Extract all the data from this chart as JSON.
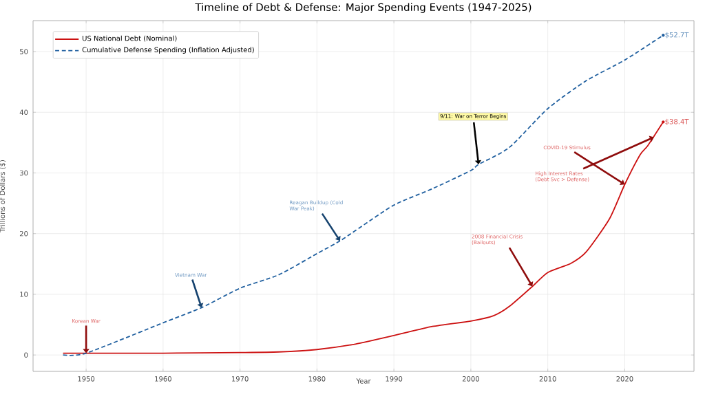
{
  "chart_data": {
    "type": "line",
    "title": "Timeline of Debt & Defense: Major Spending Events (1947-2025)",
    "xlabel": "Year",
    "ylabel": "Trillions of Dollars ($)",
    "xlim": [
      1943.1,
      2029
    ],
    "ylim": [
      -2.7,
      55.1
    ],
    "xticks": [
      1950,
      1960,
      1970,
      1980,
      1990,
      2000,
      2010,
      2020
    ],
    "yticks": [
      0,
      10,
      20,
      30,
      40,
      50
    ],
    "grid": true,
    "legend": "top left",
    "series": [
      {
        "name": "US National Debt (Nominal)",
        "color": "#cc1111",
        "line_style": "solid",
        "x": [
          1947,
          1950,
          1960,
          1970,
          1975,
          1980,
          1985,
          1990,
          1995,
          2000,
          2003,
          2005,
          2008,
          2010,
          2013,
          2015,
          2018,
          2020,
          2022,
          2023,
          2025
        ],
        "values": [
          0.3,
          0.3,
          0.3,
          0.4,
          0.5,
          0.9,
          1.8,
          3.2,
          4.7,
          5.6,
          6.5,
          8.0,
          11.3,
          13.6,
          15.1,
          17.0,
          22.4,
          28.1,
          33,
          34.5,
          38.4
        ]
      },
      {
        "name": "Cumulative Defense Spending (Inflation Adjusted)",
        "color": "#1f5f9f",
        "line_style": "dashed",
        "x": [
          1947,
          1950,
          1960,
          1965,
          1970,
          1975,
          1980,
          1983,
          1985,
          1990,
          1995,
          2000,
          2001,
          2005,
          2010,
          2015,
          2020,
          2025
        ],
        "values": [
          0,
          0.3,
          5.3,
          7.8,
          11.0,
          13.2,
          16.7,
          18.8,
          20.5,
          24.7,
          27.4,
          30.4,
          31.4,
          34.2,
          40.6,
          45.2,
          48.6,
          52.7
        ]
      }
    ],
    "annotations": [
      {
        "text": "Korean War",
        "x": 1950,
        "y": 0.3
      },
      {
        "text": "Vietnam War",
        "x": 1965,
        "y": 7.8
      },
      {
        "text": "Reagan Buildup (Cold War Peak)",
        "x": 1983,
        "y": 18.8
      },
      {
        "text": "9/11: War on Terror Begins",
        "x": 2001,
        "y": 31.4
      },
      {
        "text": "2008 Financial Crisis (Bailouts)",
        "x": 2008,
        "y": 11.3
      },
      {
        "text": "COVID-19 Stimulus",
        "x": 2020,
        "y": 28.1
      },
      {
        "text": "High Interest Rates (Debt Svc > Defense)",
        "x": 2023.8,
        "y": 35.9
      },
      {
        "text": "$52.7T",
        "x": 2025,
        "y": 52.7
      },
      {
        "text": "$38.4T",
        "x": 2025,
        "y": 38.4
      }
    ]
  }
}
